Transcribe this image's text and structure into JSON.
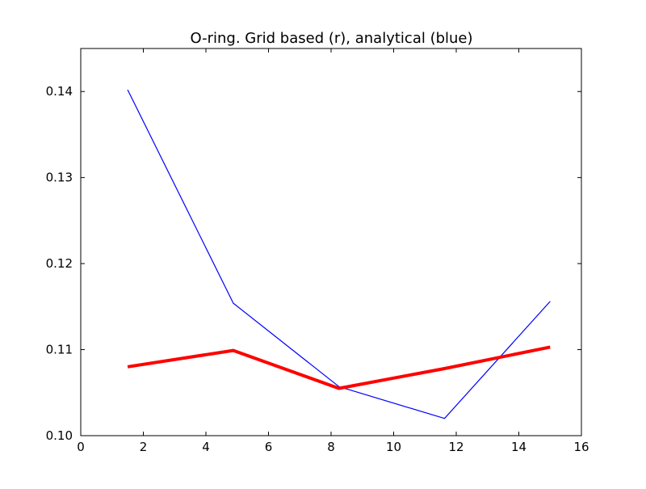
{
  "chart_data": {
    "type": "line",
    "title": "O-ring. Grid based (r), analytical (blue)",
    "xlabel": "",
    "ylabel": "",
    "xlim": [
      0,
      16
    ],
    "ylim": [
      0.1,
      0.145
    ],
    "x_ticks": [
      "0",
      "2",
      "4",
      "6",
      "8",
      "10",
      "12",
      "14",
      "16"
    ],
    "y_ticks": [
      "0.10",
      "0.11",
      "0.12",
      "0.13",
      "0.14"
    ],
    "x_tick_values": [
      0,
      2,
      4,
      6,
      8,
      10,
      12,
      14,
      16
    ],
    "y_tick_values": [
      0.1,
      0.11,
      0.12,
      0.13,
      0.14
    ],
    "grid": false,
    "series": [
      {
        "key": "analytical",
        "color": "#0000ff",
        "line_style": "thin",
        "x": [
          1.5,
          4.875,
          8.25,
          11.625,
          15.0
        ],
        "y": [
          0.1402,
          0.1154,
          0.1057,
          0.102,
          0.1156
        ]
      },
      {
        "key": "grid-based",
        "color": "#ff0000",
        "line_style": "thick",
        "x": [
          1.5,
          4.875,
          8.25,
          11.625,
          15.0
        ],
        "y": [
          0.108,
          0.1099,
          0.1055,
          0.1078,
          0.1103
        ]
      }
    ]
  }
}
